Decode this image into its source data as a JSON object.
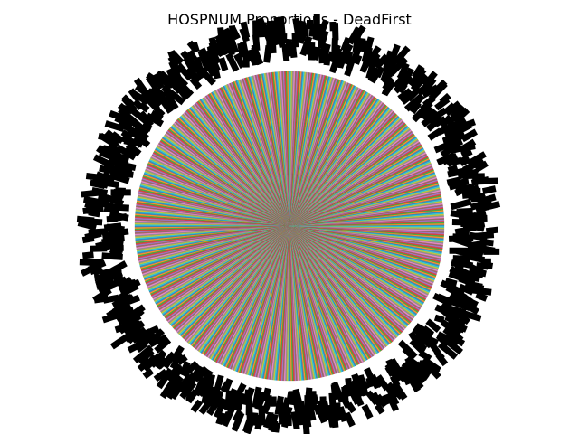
{
  "chart_data": {
    "type": "pie",
    "title": "HOSPNUM Proportions - DeadFirst",
    "slice_count": 720,
    "slice_values": "near-uniform (each slice ≈ 1/720 of total)",
    "labels_shown": "dense overlapping numeric category labels (illegible)",
    "palette": [
      "#1f77b4",
      "#ff7f0e",
      "#2ca02c",
      "#d62728",
      "#9467bd",
      "#8c564b",
      "#e377c2",
      "#7f7f7f",
      "#bcbd22",
      "#17becf"
    ],
    "legend": "none"
  }
}
